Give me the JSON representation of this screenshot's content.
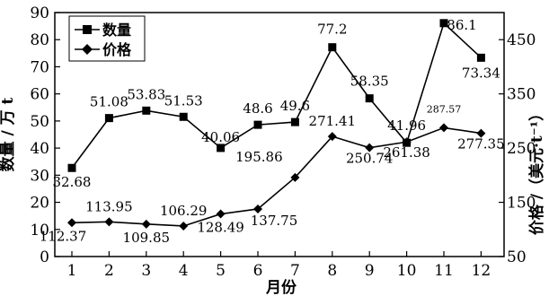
{
  "chart_data": {
    "type": "line",
    "xlabel": "月份",
    "ylabel_left": "数量 / 万 t",
    "ylabel_right": "价格 /（美元·t⁻¹）",
    "categories": [
      "1",
      "2",
      "3",
      "4",
      "5",
      "6",
      "7",
      "8",
      "9",
      "10",
      "11",
      "12"
    ],
    "y_left": {
      "range": [
        0,
        90
      ],
      "ticks": [
        "0",
        "10",
        "20",
        "30",
        "40",
        "50",
        "60",
        "70",
        "80",
        "90"
      ]
    },
    "y_right": {
      "range": [
        50,
        500
      ],
      "ticks": [
        "50",
        "150",
        "250",
        "350",
        "450"
      ]
    },
    "legend_position": "top-left",
    "series": [
      {
        "name": "数量",
        "axis": "left",
        "marker": "square",
        "values": [
          32.68,
          51.08,
          53.83,
          51.53,
          40.06,
          48.6,
          49.6,
          77.2,
          58.35,
          41.96,
          86.1,
          73.34
        ],
        "labels": [
          "32.68",
          "51.08",
          "53.83",
          "51.53",
          "40.06",
          "48.6",
          "49.6",
          "77.2",
          "58.35",
          "41.96",
          "86.1",
          "73.34"
        ]
      },
      {
        "name": "价格",
        "axis": "right",
        "marker": "diamond",
        "values": [
          112.37,
          113.95,
          109.85,
          106.29,
          128.49,
          137.75,
          195.86,
          271.41,
          250.74,
          261.38,
          287.57,
          277.35
        ],
        "labels": [
          "112.37",
          "113.95",
          "109.85",
          "106.29",
          "128.49",
          "137.75",
          "195.86",
          "271.41",
          "250.74",
          "261.38",
          "287.57",
          "277.35"
        ]
      }
    ]
  }
}
